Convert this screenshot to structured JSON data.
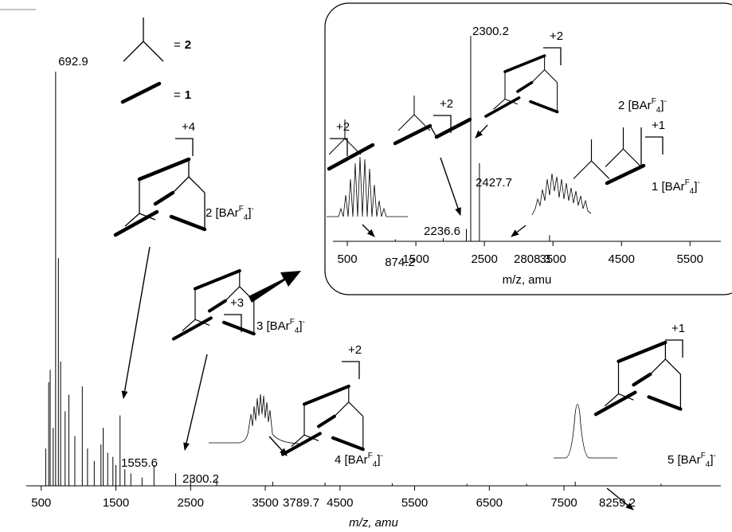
{
  "legend_items": [
    {
      "symbol_text": "=",
      "label": "2"
    },
    {
      "symbol_text": "=",
      "label": "1"
    }
  ],
  "charges": [
    "+4",
    "+3",
    "+2",
    "+1",
    "+2",
    "+2",
    "+2",
    "+1"
  ],
  "ions": [
    {
      "text": "2 [BAr",
      "sup": "F",
      "sub": "4",
      "end": "]",
      "charge": "-"
    },
    {
      "text": "3 [BAr",
      "sup": "F",
      "sub": "4",
      "end": "]",
      "charge": "-"
    },
    {
      "text": "4 [BAr",
      "sup": "F",
      "sub": "4",
      "end": "]",
      "charge": "-"
    },
    {
      "text": "5 [BAr",
      "sup": "F",
      "sub": "4",
      "end": "]",
      "charge": "-"
    },
    {
      "text": "2 [BAr",
      "sup": "F",
      "sub": "4",
      "end": "]",
      "charge": "-"
    },
    {
      "text": "1 [BAr",
      "sup": "F",
      "sub": "4",
      "end": "]",
      "charge": "-"
    }
  ],
  "chart_data": [
    {
      "type": "spectrum",
      "x_label": "m/z, amu",
      "color": "#000000",
      "x": [
        560,
        600,
        620,
        660,
        692.9,
        730,
        760,
        820,
        870,
        950,
        1050,
        1120,
        1210,
        1300,
        1330,
        1390,
        1460,
        1500,
        1555.6,
        1620,
        1700,
        1850,
        2010,
        2300,
        2500,
        2850,
        3600,
        4300,
        5200,
        6200,
        7000,
        7650,
        8800
      ],
      "values": [
        9,
        25,
        28,
        14,
        100,
        55,
        30,
        18,
        22,
        12,
        24,
        9,
        6,
        10,
        14,
        8,
        7,
        5,
        17,
        4,
        3,
        2,
        5,
        3,
        2,
        1.5,
        1,
        0.8,
        0.6,
        0.5,
        0.5,
        1,
        0.5
      ],
      "xlim": [
        300,
        9600
      ],
      "ylim": [
        0,
        100
      ],
      "xticks": [
        500,
        1500,
        2500,
        3500,
        4500,
        5500,
        6500,
        7500
      ],
      "peak_labels": [
        "692.9",
        "1555.6",
        "2300.2",
        "3789.7",
        "8259.2"
      ]
    },
    {
      "type": "spectrum",
      "x_label": "m/z, amu",
      "color": "#000000",
      "x": [
        1200,
        1900,
        2236.6,
        2300.2,
        2427.7,
        3450
      ],
      "values": [
        1,
        1.5,
        6,
        100,
        38,
        3
      ],
      "xlim": [
        290,
        5950
      ],
      "ylim": [
        0,
        100
      ],
      "xticks": [
        500,
        1500,
        2500,
        3500,
        4500,
        5500
      ],
      "peak_labels": [
        "2300.2",
        "2427.7",
        "2236.6",
        "874.2",
        "2808.3"
      ]
    }
  ]
}
